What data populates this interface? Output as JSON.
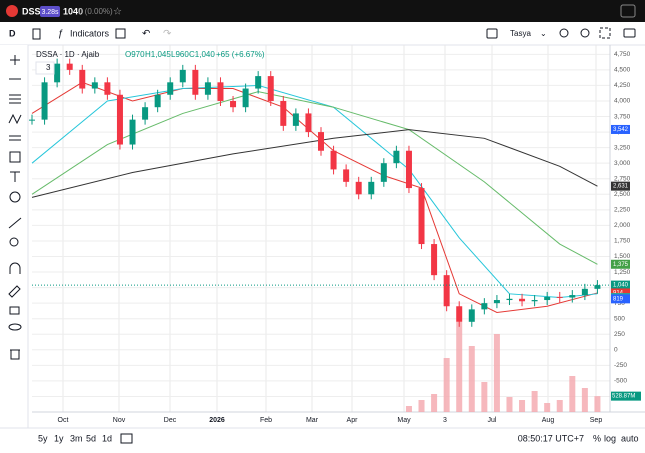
{
  "header": {
    "symbol": "DSSA",
    "badge": "3.28s",
    "price": "1040",
    "change": "0 (0.00%)"
  },
  "toolbar": {
    "interval": "D",
    "indicators": "Indicators",
    "layout": "Tasya"
  },
  "legend": {
    "title": "DSSA · 1D · Ajaib",
    "open": "O970",
    "high": "H1,045",
    "low": "L960",
    "close": "C1,040",
    "change": "+65 (+6.67%)",
    "count": "3"
  },
  "chart_data": {
    "type": "candlestick",
    "x": [
      0,
      1,
      2,
      3,
      4,
      5,
      6,
      7,
      8,
      9,
      10,
      11,
      12,
      13,
      14,
      15,
      16,
      17,
      18,
      19,
      20,
      21,
      22,
      23,
      24,
      25,
      26,
      27,
      28,
      29,
      30,
      31,
      32,
      33,
      34,
      35,
      36,
      37,
      38,
      39,
      40,
      41,
      42,
      43,
      44,
      45
    ],
    "values": [
      3700,
      4300,
      4600,
      4500,
      4200,
      4300,
      4100,
      3300,
      3700,
      3900,
      4100,
      4300,
      4500,
      4100,
      4300,
      4000,
      3900,
      4200,
      4400,
      4000,
      3600,
      3800,
      3500,
      3200,
      2900,
      2700,
      2500,
      2700,
      3000,
      3200,
      2600,
      1700,
      1200,
      700,
      450,
      650,
      750,
      800,
      820,
      780,
      800,
      850,
      840,
      880,
      980,
      1040
    ],
    "xlim": [
      0,
      46
    ],
    "ylim": [
      -1000,
      4900
    ],
    "yticks": [
      {
        "value": 4750,
        "label": "4,750"
      },
      {
        "value": 4500,
        "label": "4,500"
      },
      {
        "value": 4250,
        "label": "4,250"
      },
      {
        "value": 4000,
        "label": "4,000"
      },
      {
        "value": 3750,
        "label": "3,750"
      },
      {
        "value": 3500,
        "label": "3,500"
      },
      {
        "value": 3250,
        "label": "3,250"
      },
      {
        "value": 3000,
        "label": "3,000"
      },
      {
        "value": 2750,
        "label": "2,750"
      },
      {
        "value": 2500,
        "label": "2,500"
      },
      {
        "value": 2250,
        "label": "2,250"
      },
      {
        "value": 2000,
        "label": "2,000"
      },
      {
        "value": 1750,
        "label": "1,750"
      },
      {
        "value": 1500,
        "label": "1,500"
      },
      {
        "value": 1250,
        "label": "1,250"
      },
      {
        "value": 1000,
        "label": "1,000"
      },
      750,
      500,
      250,
      0,
      -250,
      -500,
      -750
    ],
    "xticks": [
      "Oct",
      "Nov",
      "Dec",
      "2026",
      "Feb",
      "Mar",
      "Apr",
      "May",
      "3",
      "Jul",
      "Aug",
      "Sep"
    ],
    "up_color": "#089981",
    "down_color": "#f23645",
    "series": [
      {
        "name": "MA 20",
        "color": "#e53935",
        "x": [
          0,
          4,
          8,
          12,
          16,
          20,
          24,
          28,
          31,
          34,
          37,
          41,
          45
        ],
        "values": [
          3800,
          4300,
          4000,
          4200,
          4200,
          3900,
          3200,
          2800,
          2600,
          900,
          600,
          700,
          914
        ]
      },
      {
        "name": "MA 50",
        "color": "#26c6da",
        "x": [
          0,
          6,
          12,
          18,
          24,
          30,
          34,
          38,
          42,
          45
        ],
        "values": [
          3000,
          4000,
          4200,
          4250,
          3900,
          2900,
          1800,
          900,
          840,
          900
        ]
      },
      {
        "name": "MA 100",
        "color": "#66bb6a",
        "x": [
          0,
          6,
          12,
          18,
          24,
          30,
          36,
          42,
          45
        ],
        "values": [
          2500,
          3300,
          3800,
          4150,
          3900,
          3540,
          2700,
          1700,
          1375
        ]
      },
      {
        "name": "MA 200",
        "color": "#333333",
        "x": [
          0,
          8,
          16,
          24,
          30,
          36,
          42,
          45
        ],
        "values": [
          2450,
          2850,
          3150,
          3400,
          3540,
          3400,
          2950,
          2631
        ]
      }
    ],
    "volume": {
      "color": "#f4a6ad",
      "x": [
        30,
        31,
        32,
        33,
        34,
        35,
        36,
        37,
        38,
        39,
        40,
        41,
        42,
        43,
        44,
        45
      ],
      "values": [
        200,
        400,
        600,
        1800,
        3000,
        2200,
        1000,
        2600,
        500,
        400,
        700,
        300,
        400,
        1200,
        800,
        528.87
      ],
      "vlim": [
        0,
        3000
      ]
    },
    "price_badges": [
      {
        "value": 3542,
        "label": "3,542",
        "color": "#2962ff"
      },
      {
        "value": 2631,
        "label": "2,631",
        "color": "#333333"
      },
      {
        "value": 1375,
        "label": "1,375",
        "color": "#43a047"
      },
      {
        "value": 1040,
        "label": "1,040",
        "color": "#089981"
      },
      {
        "value": 914,
        "label": "914",
        "color": "#e53935"
      },
      {
        "value": 840,
        "label": "840",
        "color": "#26a69a"
      },
      {
        "value": 819,
        "label": "819",
        "color": "#2962ff"
      }
    ],
    "volume_badge": {
      "value": 528.87,
      "label": "528.87M",
      "color": "#089981"
    }
  },
  "footer": {
    "ranges": [
      "5y",
      "1y",
      "3m",
      "5d",
      "1d"
    ],
    "time": "08:50:17 UTC+7",
    "percent": "%",
    "log": "log",
    "auto": "auto"
  }
}
